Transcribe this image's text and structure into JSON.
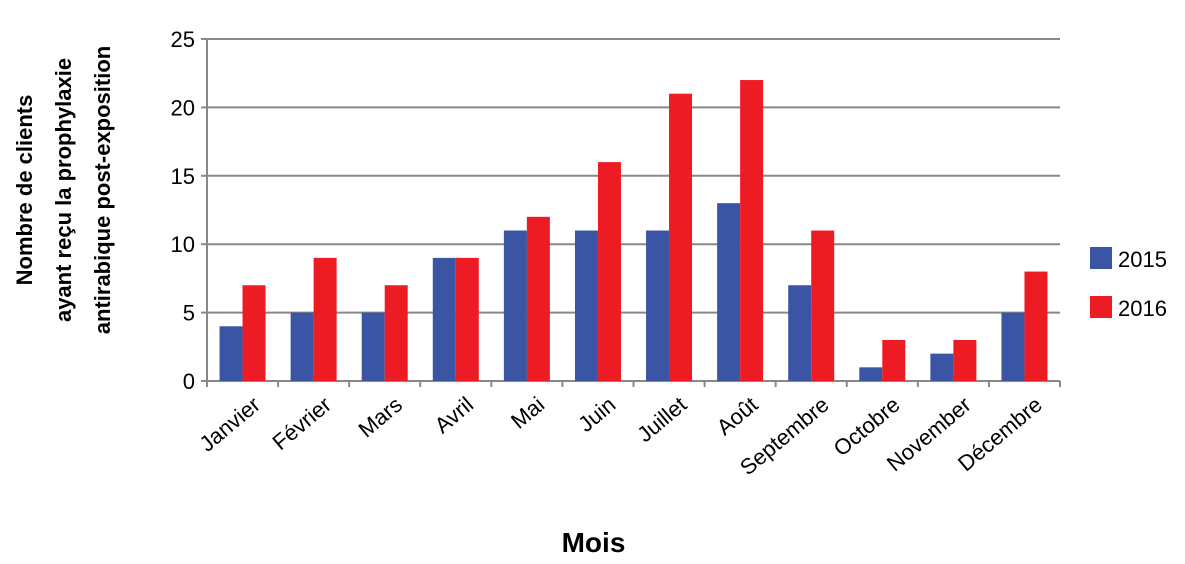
{
  "chart_data": {
    "type": "bar",
    "y_label": [
      "Nombre de clients",
      "ayant reçu la prophylaxie",
      "antirabique post-exposition"
    ],
    "x_label": "Mois",
    "categories": [
      "Janvier",
      "Février",
      "Mars",
      "Avril",
      "Mai",
      "Juin",
      "Juillet",
      "Août",
      "Septembre",
      "Octobre",
      "November",
      "Décembre"
    ],
    "series": [
      {
        "name": "2015",
        "color": "#3a55a4",
        "values": [
          4,
          5,
          5,
          9,
          11,
          11,
          11,
          13,
          7,
          1,
          2,
          5
        ]
      },
      {
        "name": "2016",
        "color": "#ed1c24",
        "values": [
          7,
          9,
          7,
          9,
          12,
          16,
          21,
          22,
          11,
          3,
          3,
          8
        ]
      }
    ],
    "ylim": [
      0,
      25
    ],
    "yticks": [
      0,
      5,
      10,
      15,
      20,
      25
    ],
    "grid": true,
    "legend": "right"
  }
}
